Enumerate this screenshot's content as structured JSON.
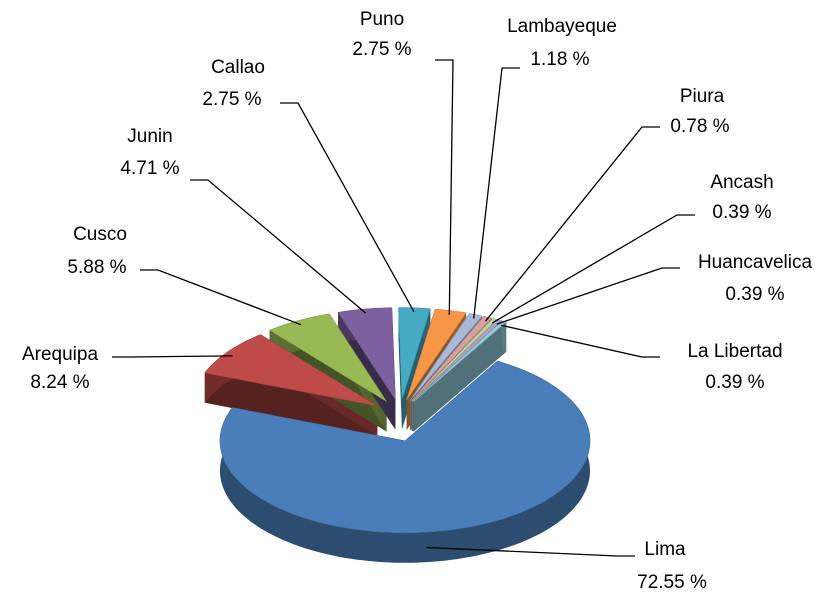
{
  "chart_data": {
    "type": "pie3d",
    "categories": [
      "Lima",
      "Arequipa",
      "Cusco",
      "Junin",
      "Callao",
      "Puno",
      "Lambayeque",
      "Piura",
      "Ancash",
      "Huancavelica",
      "La Libertad"
    ],
    "values": [
      72.55,
      8.24,
      5.88,
      4.71,
      2.75,
      2.75,
      1.18,
      0.78,
      0.39,
      0.39,
      0.39
    ],
    "value_labels": [
      "72.55 %",
      "8.24 %",
      "5.88 %",
      "4.71 %",
      "2.75 %",
      "2.75 %",
      "1.18 %",
      "0.78 %",
      "0.39 %",
      "0.39 %",
      "0.39 %"
    ],
    "colors": [
      "#4a7ebb",
      "#be4b48",
      "#98b954",
      "#7d60a0",
      "#46aac5",
      "#f79646",
      "#a9b9d9",
      "#d9a0a0",
      "#c3d69b",
      "#b3a2c7",
      "#93cddd"
    ]
  }
}
